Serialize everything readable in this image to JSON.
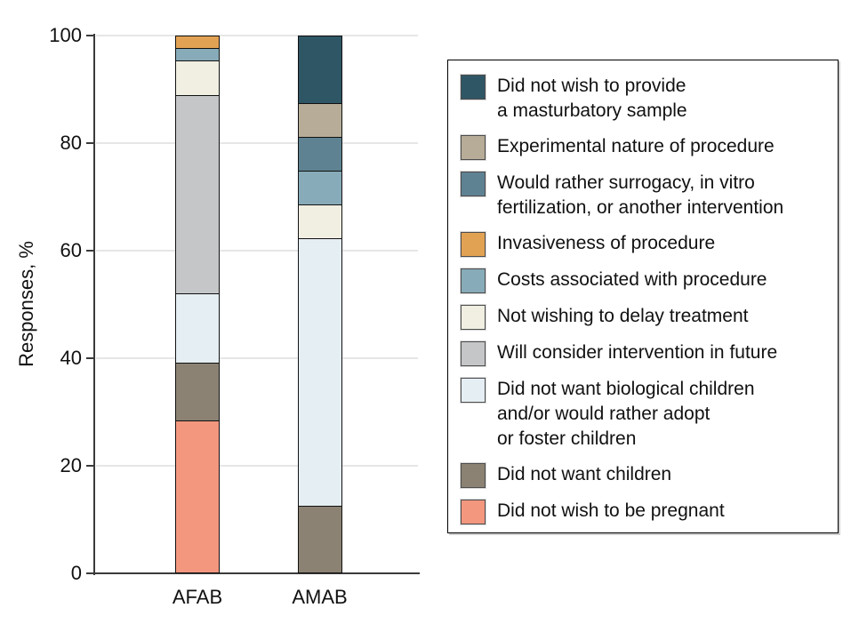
{
  "chart_data": {
    "type": "bar",
    "stacked": true,
    "title": "",
    "xlabel": "",
    "ylabel": "Responses, %",
    "ylim": [
      0,
      100
    ],
    "yticks": [
      0,
      20,
      40,
      60,
      80,
      100
    ],
    "grid": true,
    "legend_position": "right",
    "categories": [
      "AFAB",
      "AMAB"
    ],
    "series": [
      {
        "name": "Did not wish to be pregnant",
        "color": "#F3977F",
        "values": [
          28.3,
          0
        ]
      },
      {
        "name": "Did not want children",
        "color": "#8B8273",
        "values": [
          10.9,
          12.5
        ]
      },
      {
        "name": "Did not want biological children and/or would rather adopt or foster children",
        "color": "#E5EEF3",
        "values": [
          13.0,
          50.0
        ]
      },
      {
        "name": "Will consider intervention in future",
        "color": "#C5C6C8",
        "values": [
          37.0,
          0
        ]
      },
      {
        "name": "Not wishing to delay treatment",
        "color": "#F0EFE2",
        "values": [
          6.5,
          6.3
        ]
      },
      {
        "name": "Costs associated with procedure",
        "color": "#87ABB8",
        "values": [
          2.2,
          6.3
        ]
      },
      {
        "name": "Invasiveness of procedure",
        "color": "#E2A254",
        "values": [
          2.2,
          0
        ]
      },
      {
        "name": "Would rather surrogacy, in vitro fertilization, or another intervention",
        "color": "#5E8292",
        "values": [
          0,
          6.3
        ]
      },
      {
        "name": "Experimental nature of procedure",
        "color": "#B7AC97",
        "values": [
          0,
          6.3
        ]
      },
      {
        "name": "Did not wish to provide a masturbatory sample",
        "color": "#2F5665",
        "values": [
          0,
          12.5
        ]
      }
    ],
    "legend_items": [
      {
        "color": "#2F5665",
        "lines": [
          "Did not wish to provide",
          "a masturbatory sample"
        ]
      },
      {
        "color": "#B7AC97",
        "lines": [
          "Experimental nature of procedure"
        ]
      },
      {
        "color": "#5E8292",
        "lines": [
          "Would rather surrogacy, in vitro",
          "fertilization, or another intervention"
        ]
      },
      {
        "color": "#E2A254",
        "lines": [
          "Invasiveness of procedure"
        ]
      },
      {
        "color": "#87ABB8",
        "lines": [
          "Costs associated with procedure"
        ]
      },
      {
        "color": "#F0EFE2",
        "lines": [
          "Not wishing to delay treatment"
        ]
      },
      {
        "color": "#C5C6C8",
        "lines": [
          "Will consider intervention in future"
        ]
      },
      {
        "color": "#E5EEF3",
        "lines": [
          "Did not want biological children",
          "and/or would rather adopt",
          "or foster children"
        ]
      },
      {
        "color": "#8B8273",
        "lines": [
          "Did not want children"
        ]
      },
      {
        "color": "#F3977F",
        "lines": [
          "Did not wish to be pregnant"
        ]
      }
    ]
  }
}
